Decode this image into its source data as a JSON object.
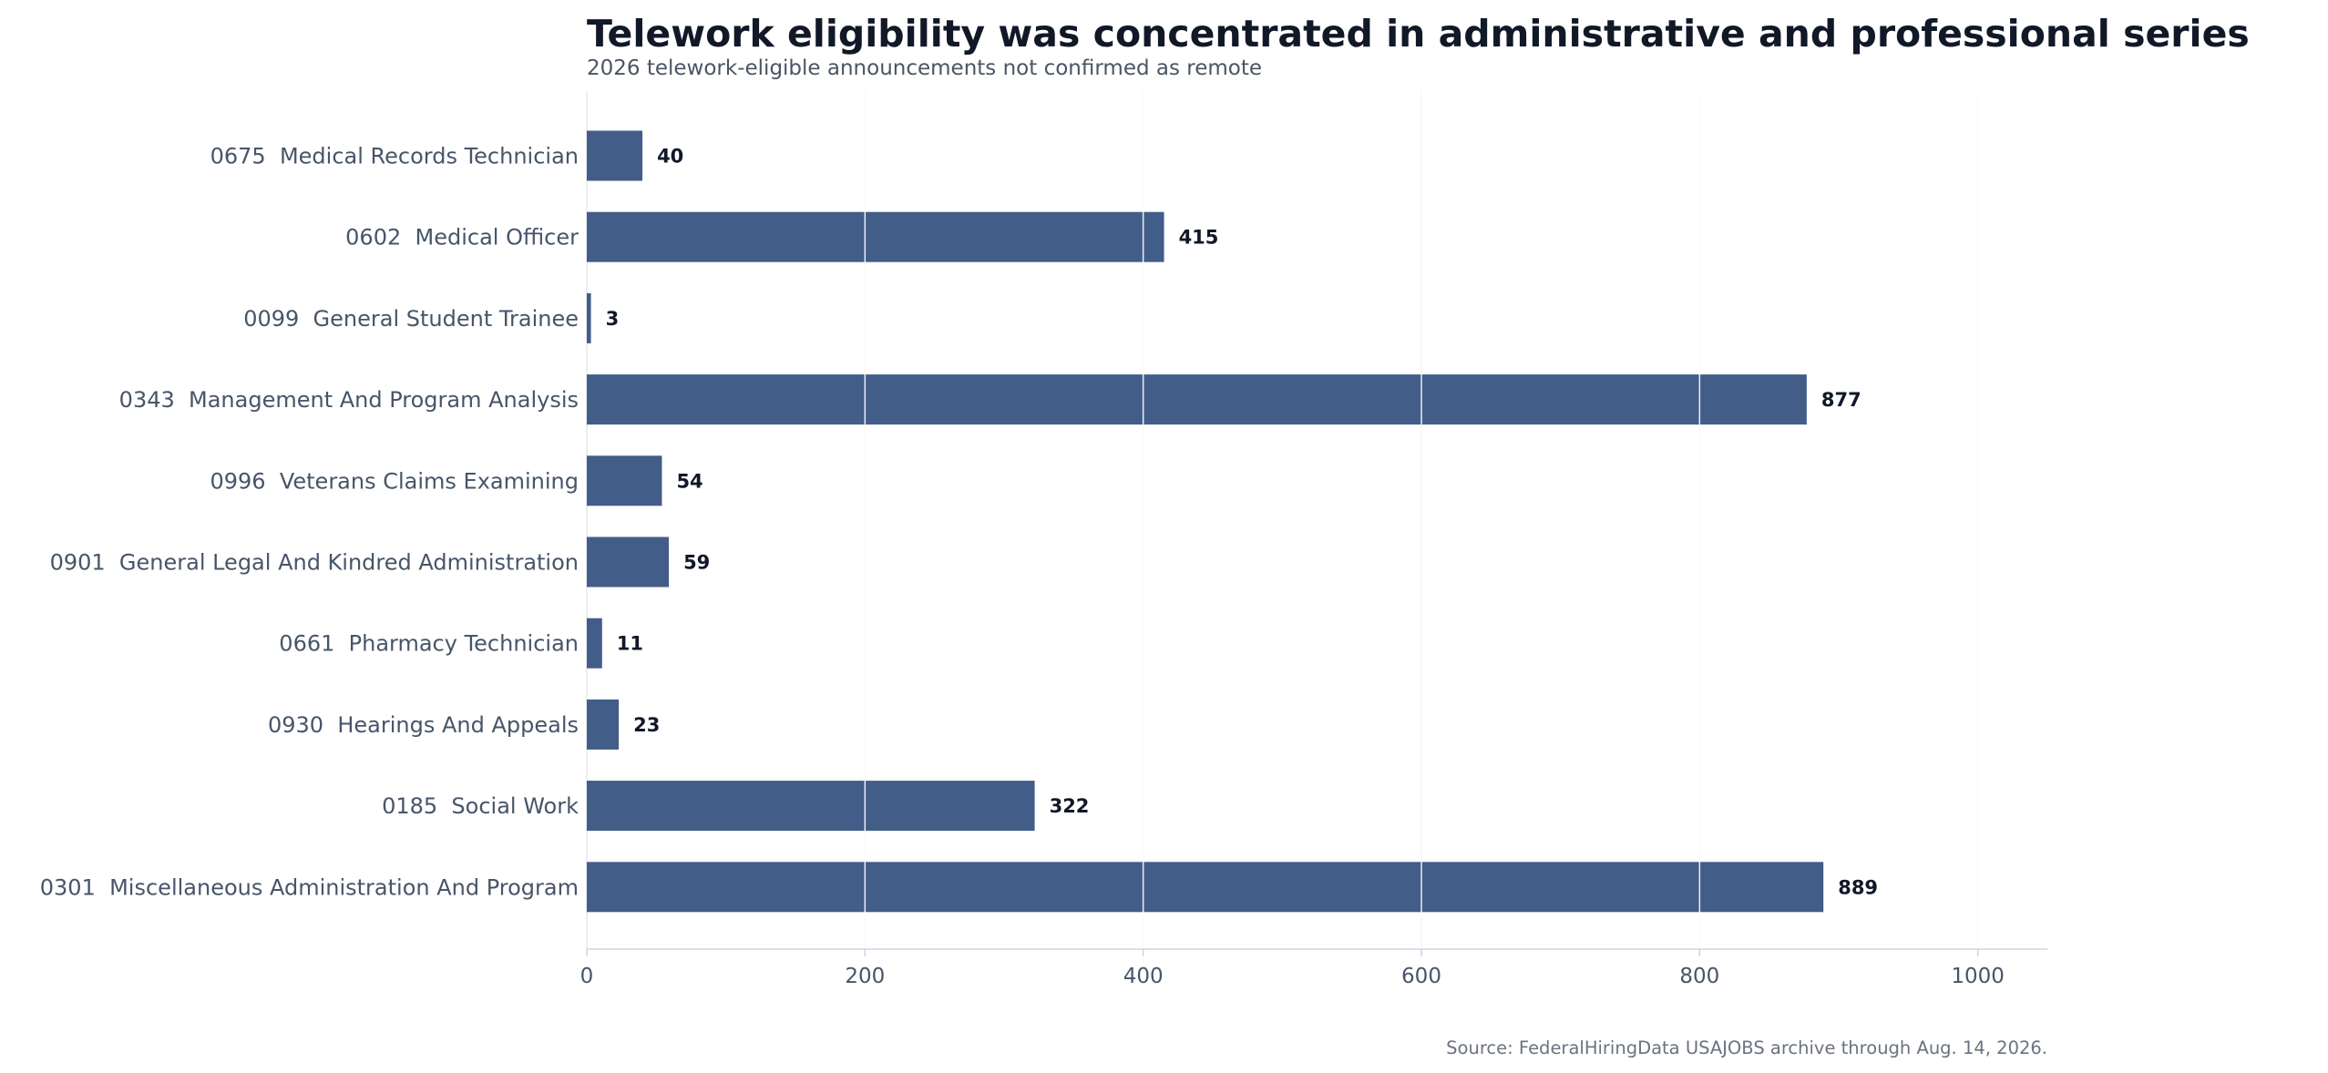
{
  "chart_data": {
    "type": "bar",
    "orientation": "horizontal",
    "title": "Telework eligibility was concentrated in administrative and professional series",
    "subtitle": "2026 telework-eligible announcements not confirmed as remote",
    "xlabel": "",
    "ylabel": "",
    "xlim": [
      0,
      1050
    ],
    "xticks": [
      0,
      200,
      400,
      600,
      800,
      1000
    ],
    "grid": "vertical",
    "categories": [
      "0675  Medical Records Technician",
      "0602  Medical Officer",
      "0099  General Student Trainee",
      "0343  Management And Program Analysis",
      "0996  Veterans Claims Examining",
      "0901  General Legal And Kindred Administration",
      "0661  Pharmacy Technician",
      "0930  Hearings And Appeals",
      "0185  Social Work",
      "0301  Miscellaneous Administration And Program"
    ],
    "values": [
      40,
      415,
      3,
      877,
      54,
      59,
      11,
      23,
      322,
      889
    ],
    "source": "Source: FederalHiringData USAJOBS archive through Aug. 14, 2026.",
    "colors": {
      "bar": "#435d89",
      "grid": "#e5e7eb",
      "axis": "#cbd5e1",
      "title": "#111827",
      "label": "#475569"
    }
  }
}
